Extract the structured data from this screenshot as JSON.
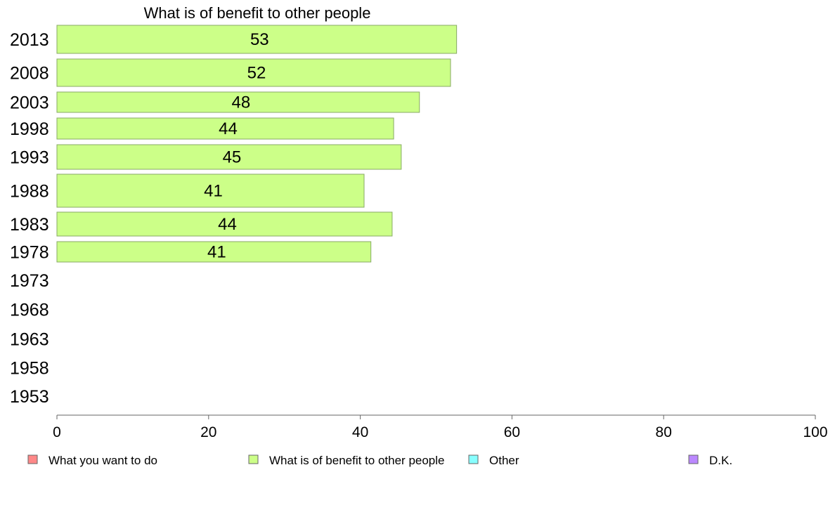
{
  "chart_data": {
    "type": "bar",
    "orientation": "horizontal",
    "title": "What is of benefit to other people",
    "categories": [
      "2013",
      "2008",
      "2003",
      "1998",
      "1993",
      "1988",
      "1983",
      "1978",
      "1973",
      "1968",
      "1963",
      "1958",
      "1953"
    ],
    "values": [
      52.7,
      51.9,
      47.8,
      44.4,
      45.4,
      40.5,
      44.2,
      41.4,
      null,
      null,
      null,
      null,
      null
    ],
    "value_labels": [
      "53",
      "52",
      "48",
      "44",
      "45",
      "41",
      "44",
      "41",
      "",
      "",
      "",
      "",
      ""
    ],
    "xlim": [
      0,
      100
    ],
    "xticks": [
      0,
      20,
      40,
      60,
      80,
      100
    ],
    "xlabel": "",
    "ylabel": "",
    "bar_color": "#ccff88",
    "bar_border": "#88aa66",
    "legend_position": "bottom",
    "legend": [
      {
        "name": "What you want to do",
        "color": "#ff8888"
      },
      {
        "name": "What is of benefit to other people",
        "color": "#ccff88"
      },
      {
        "name": "Other",
        "color": "#88ffff"
      },
      {
        "name": "D.K.",
        "color": "#bb88ff"
      }
    ]
  }
}
